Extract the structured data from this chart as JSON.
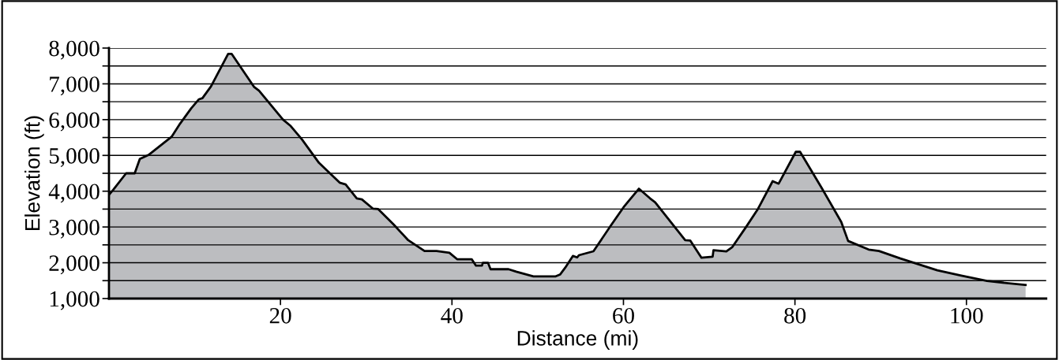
{
  "chart_data": {
    "type": "area",
    "xlabel": "Distance (mi)",
    "ylabel": "Elevation (ft)",
    "x": [
      0,
      0.5,
      2.0,
      3.0,
      3.6,
      4.6,
      7.3,
      8.3,
      9.6,
      10.5,
      10.9,
      11.9,
      13.9,
      14.3,
      16.9,
      17.5,
      20.3,
      21.2,
      22.5,
      24.5,
      26.9,
      27.6,
      28.9,
      29.5,
      30.8,
      31.4,
      33.2,
      34.9,
      36.8,
      38.2,
      39.7,
      40.6,
      42.3,
      42.8,
      43.5,
      43.6,
      44.2,
      44.5,
      46.6,
      47.5,
      49.5,
      52.1,
      52.6,
      53.2,
      54.1,
      54.6,
      54.8,
      56.5,
      58.5,
      60.1,
      61.8,
      63.1,
      63.7,
      67.2,
      67.8,
      69.1,
      70.4,
      70.5,
      72.0,
      72.7,
      74.3,
      75.7,
      77.4,
      78.1,
      80.1,
      80.6,
      83.1,
      85.4,
      86.2,
      88.6,
      89.8,
      92.3,
      96.6,
      99.4,
      102.4,
      106.9
    ],
    "series": [
      {
        "color": "#bcbdc0",
        "values": [
          3900,
          4040,
          4500,
          4500,
          4900,
          5010,
          5520,
          5890,
          6320,
          6570,
          6600,
          6930,
          7840,
          7840,
          6920,
          6810,
          6000,
          5820,
          5450,
          4790,
          4240,
          4190,
          3800,
          3770,
          3510,
          3500,
          3070,
          2630,
          2330,
          2330,
          2280,
          2100,
          2100,
          1920,
          1920,
          2000,
          2000,
          1820,
          1820,
          1750,
          1620,
          1620,
          1670,
          1860,
          2190,
          2150,
          2210,
          2320,
          3030,
          3580,
          4070,
          3800,
          3690,
          2630,
          2620,
          2140,
          2170,
          2350,
          2320,
          2440,
          3000,
          3510,
          4280,
          4210,
          5100,
          5100,
          4100,
          3140,
          2610,
          2370,
          2330,
          2120,
          1790,
          1640,
          1490,
          1380
        ]
      }
    ],
    "xlim": [
      0,
      109.3
    ],
    "xticks": [
      20,
      40,
      60,
      80,
      100
    ],
    "ylim": [
      1000,
      8000
    ],
    "yticks": [
      {
        "value": 1000,
        "label": "1,000"
      },
      {
        "value": 1500,
        "label": null
      },
      {
        "value": 2000,
        "label": "2,000"
      },
      {
        "value": 2500,
        "label": null
      },
      {
        "value": 3000,
        "label": "3,000"
      },
      {
        "value": 3500,
        "label": null
      },
      {
        "value": 4000,
        "label": "4,000"
      },
      {
        "value": 4500,
        "label": null
      },
      {
        "value": 5000,
        "label": "5,000"
      },
      {
        "value": 5500,
        "label": null
      },
      {
        "value": 6000,
        "label": "6,000"
      },
      {
        "value": 6500,
        "label": null
      },
      {
        "value": 7000,
        "label": "7,000"
      },
      {
        "value": 7500,
        "label": null
      },
      {
        "value": 8000,
        "label": "8,000"
      }
    ],
    "grid": "y"
  }
}
